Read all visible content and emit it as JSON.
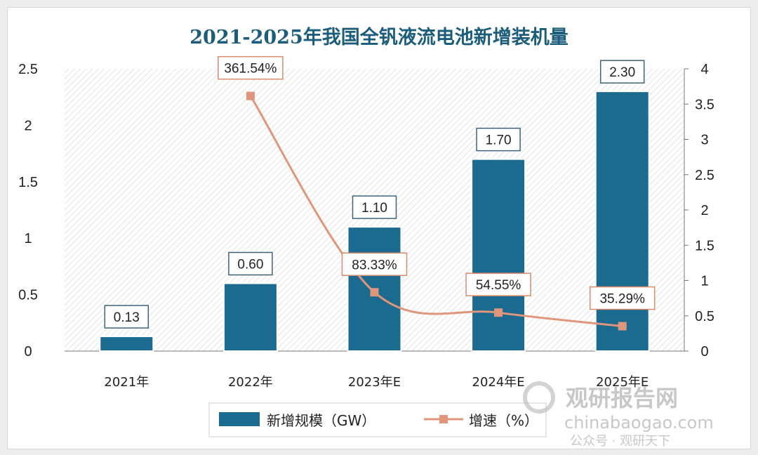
{
  "chart_data": {
    "type": "bar",
    "title": "2021-2025年我国全钒液流电池新增装机量",
    "categories": [
      "2021年",
      "2022年",
      "2023年E",
      "2024年E",
      "2025年E"
    ],
    "series": [
      {
        "name": "新增规模（GW）",
        "type": "bar",
        "axis": "left",
        "values": [
          0.13,
          0.6,
          1.1,
          1.7,
          2.3
        ],
        "labels": [
          "0.13",
          "0.60",
          "1.10",
          "1.70",
          "2.30"
        ],
        "color": "#1b6a90"
      },
      {
        "name": "增速（%）",
        "type": "line",
        "axis": "right",
        "values": [
          null,
          3.6154,
          0.8333,
          0.5455,
          0.3529
        ],
        "labels": [
          "",
          "361.54%",
          "83.33%",
          "54.55%",
          "35.29%"
        ],
        "color": "#e0967a"
      }
    ],
    "ylim_left": [
      0,
      2.5
    ],
    "yticks_left": [
      "0",
      "0.5",
      "1",
      "1.5",
      "2",
      "2.5"
    ],
    "ylim_right": [
      0,
      4
    ],
    "yticks_right": [
      "0",
      "0.5",
      "1",
      "1.5",
      "2",
      "2.5",
      "3",
      "3.5",
      "4"
    ],
    "legend_position": "bottom",
    "grid": false
  },
  "legend": {
    "bar_label": "新增规模（GW）",
    "line_label": "增速（%）"
  },
  "watermark": {
    "brand": "观研报告网",
    "site": "chinabaogao.com",
    "wechat": "公众号 · 观研天下"
  }
}
